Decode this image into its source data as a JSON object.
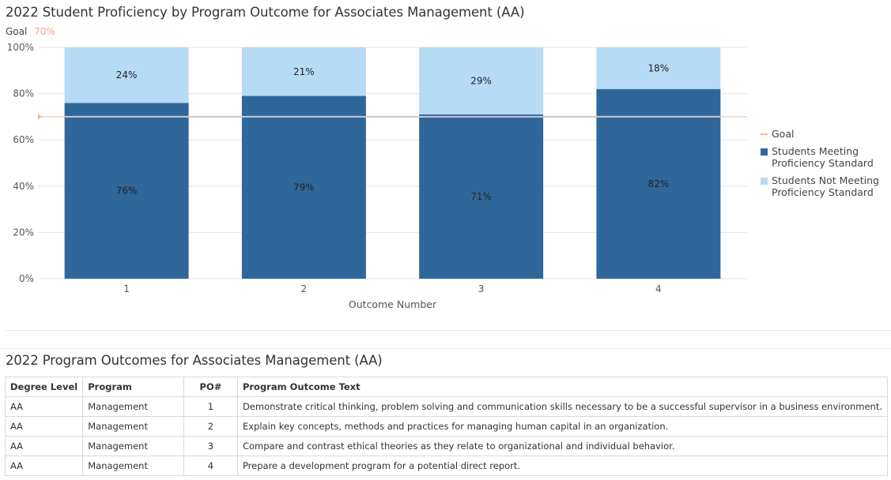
{
  "chart_title": "2022 Student Proficiency by Program Outcome for Associates Management (AA)",
  "goal": {
    "label": "Goal",
    "value_label": "70%",
    "value": 70
  },
  "chart_data": {
    "type": "bar",
    "stacked": true,
    "title": "2022 Student Proficiency by Program Outcome for Associates Management (AA)",
    "xlabel": "Outcome Number",
    "ylabel": "",
    "categories": [
      "1",
      "2",
      "3",
      "4"
    ],
    "series": [
      {
        "name": "Students Meeting Proficiency Standard",
        "values": [
          76,
          79,
          71,
          82
        ],
        "labels": [
          "76%",
          "79%",
          "71%",
          "82%"
        ],
        "color": "#30679a"
      },
      {
        "name": "Students Not Meeting Proficiency Standard",
        "values": [
          24,
          21,
          29,
          18
        ],
        "labels": [
          "24%",
          "21%",
          "29%",
          "18%"
        ],
        "color": "#b7daf5"
      }
    ],
    "goal_line": {
      "name": "Goal",
      "value": 70,
      "color": "#f5b69c"
    },
    "ylim": [
      0,
      100
    ],
    "yticks": [
      "0%",
      "20%",
      "40%",
      "60%",
      "80%",
      "100%"
    ],
    "ytick_values": [
      0,
      20,
      40,
      60,
      80,
      100
    ],
    "grid": true,
    "legend_position": "right"
  },
  "legend": {
    "goal": "Goal",
    "meeting": "Students Meeting Proficiency Standard",
    "not_meeting": "Students Not Meeting Proficiency Standard"
  },
  "table": {
    "title": "2022 Program Outcomes for Associates Management (AA)",
    "headers": [
      "Degree Level",
      "Program",
      "PO#",
      "Program Outcome Text"
    ],
    "rows": [
      [
        "AA",
        "Management",
        "1",
        "Demonstrate critical thinking, problem solving and communication skills necessary to be a successful supervisor in a business environment."
      ],
      [
        "AA",
        "Management",
        "2",
        "Explain key concepts, methods and practices for managing human capital in an organization."
      ],
      [
        "AA",
        "Management",
        "3",
        "Compare and contrast ethical theories as they relate to organizational and individual behavior."
      ],
      [
        "AA",
        "Management",
        "4",
        "Prepare a development program for a potential direct report."
      ]
    ]
  },
  "colors": {
    "meeting": "#30679a",
    "not_meeting": "#b7daf5",
    "goal": "#f5b69c",
    "goal_text": "#f0a283",
    "grid": "#e6e6e6"
  }
}
